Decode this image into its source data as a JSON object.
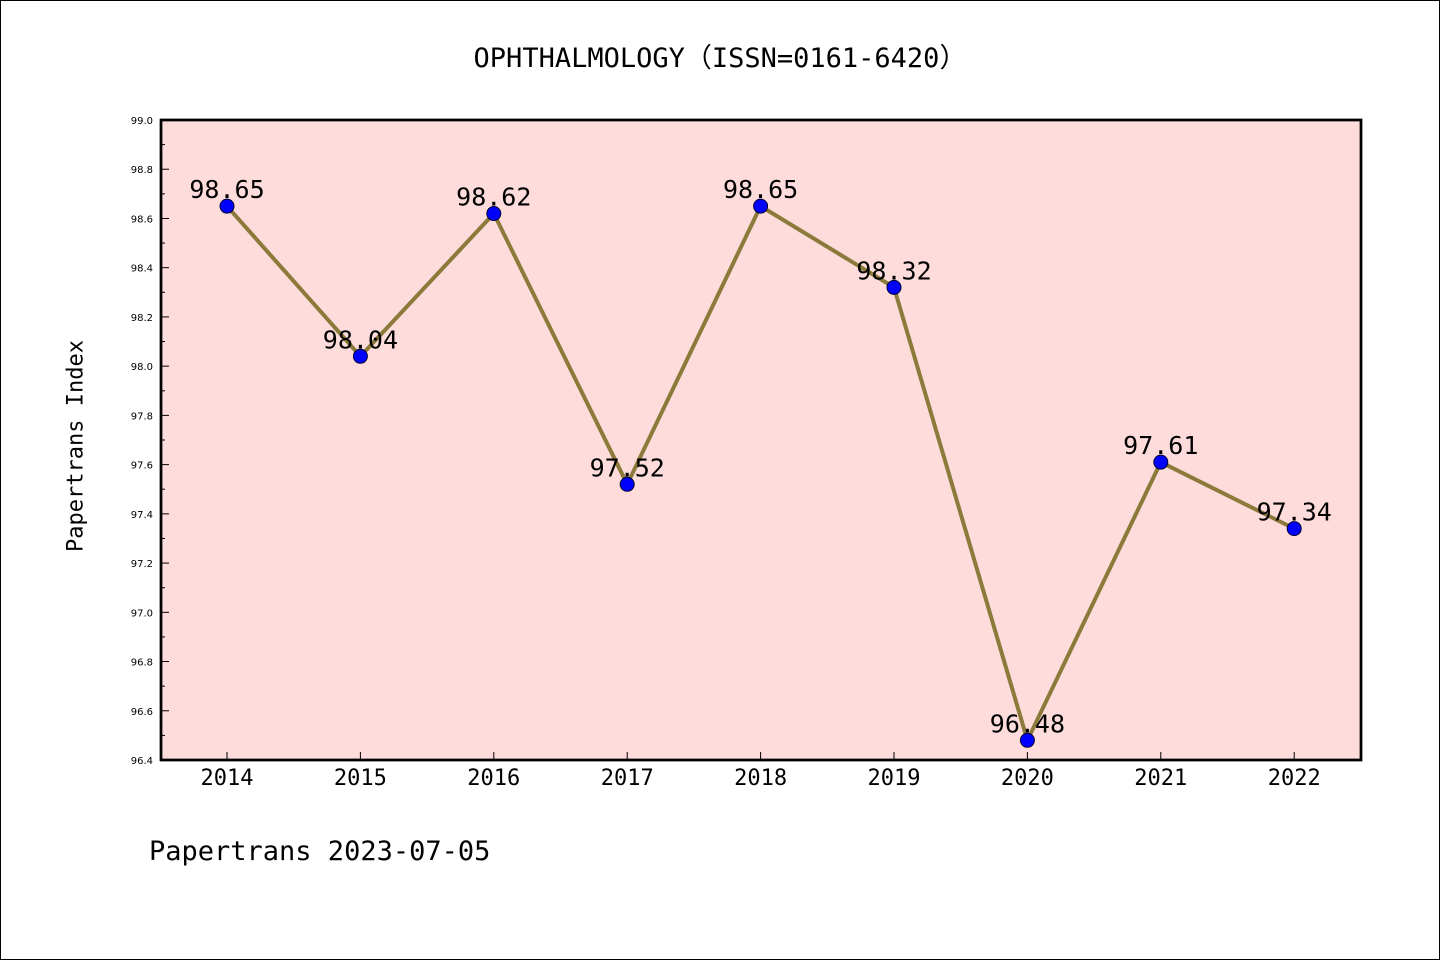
{
  "chart_data": {
    "type": "line",
    "title": "OPHTHALMOLOGY（ISSN=0161-6420）",
    "xlabel": "",
    "ylabel": "Papertrans Index",
    "categories": [
      "2014",
      "2015",
      "2016",
      "2017",
      "2018",
      "2019",
      "2020",
      "2021",
      "2022"
    ],
    "series": [
      {
        "values": [
          98.65,
          98.04,
          98.62,
          97.52,
          98.65,
          98.32,
          96.48,
          97.61,
          97.34
        ]
      }
    ],
    "data_labels": [
      "98.65",
      "98.04",
      "98.62",
      "97.52",
      "98.65",
      "98.32",
      "96.48",
      "97.61",
      "97.34"
    ],
    "ylim": [
      96.4,
      99.0
    ],
    "y_ticks": [
      "96.4",
      "96.6",
      "96.8",
      "97.0",
      "97.2",
      "97.4",
      "97.6",
      "97.8",
      "98.0",
      "98.2",
      "98.4",
      "98.6",
      "98.8",
      "99.0"
    ],
    "grid": false,
    "legend": "none",
    "colors": {
      "plot_background": "#fddcdb",
      "line": "#8c7a3a",
      "marker": "#0000ff"
    }
  },
  "footer": {
    "text": "Papertrans 2023-07-05"
  }
}
